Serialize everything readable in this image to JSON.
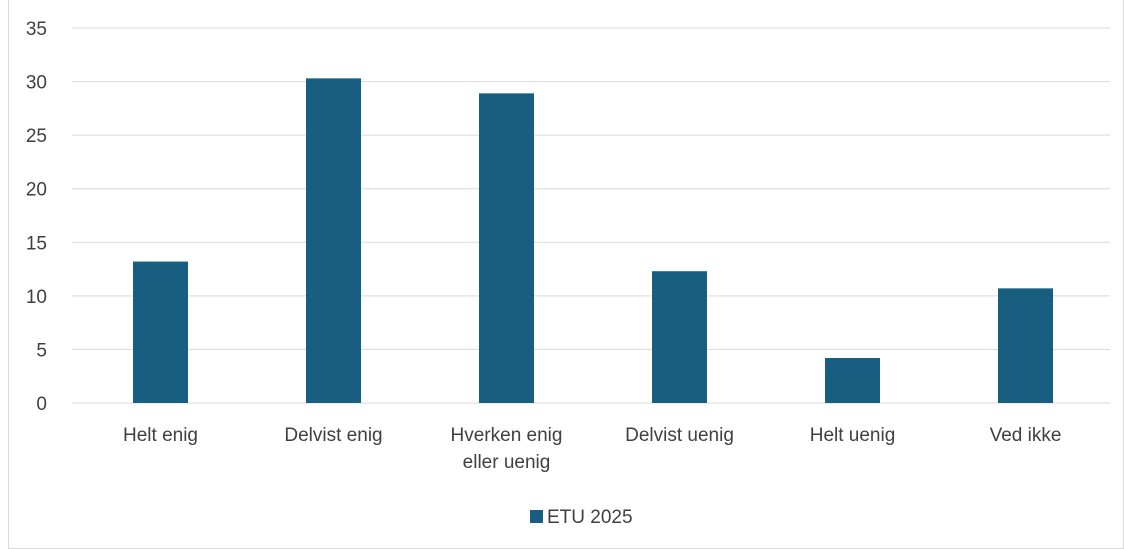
{
  "chart_data": {
    "type": "bar",
    "categories": [
      [
        "Helt enig"
      ],
      [
        "Delvist enig"
      ],
      [
        "Hverken enig",
        "eller uenig"
      ],
      [
        "Delvist uenig"
      ],
      [
        "Helt uenig"
      ],
      [
        "Ved ikke"
      ]
    ],
    "series": [
      {
        "name": "ETU 2025",
        "values": [
          13.2,
          30.3,
          28.9,
          12.3,
          4.2,
          10.7
        ],
        "color": "#175e80"
      }
    ],
    "ylim": [
      0,
      35
    ],
    "yticks": [
      0,
      5,
      10,
      15,
      20,
      25,
      30,
      35
    ],
    "grid": true,
    "gridline_color": "#d9d9d9",
    "legend_position": "bottom"
  }
}
